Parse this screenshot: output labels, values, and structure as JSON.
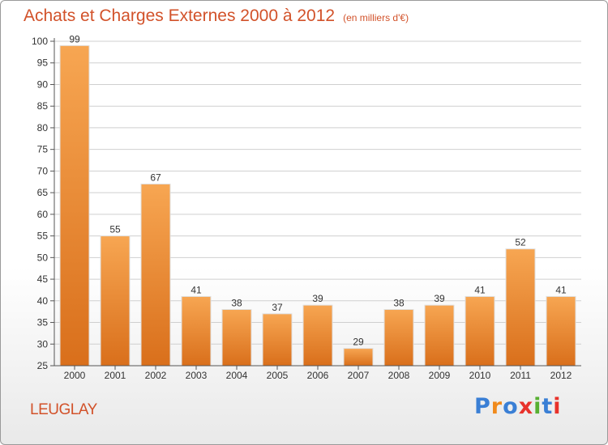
{
  "header": {
    "title": "Achats et Charges Externes 2000 à 2012",
    "unit": "(en milliers d'€)"
  },
  "footer": {
    "region": "LEUGLAY",
    "logo": "Proxiti",
    "logo_colors": [
      "#3a7fd5",
      "#f08a1c",
      "#3a7fd5",
      "#e8322b",
      "#58b032",
      "#3a7fd5",
      "#e8322b"
    ]
  },
  "colors": {
    "bar_light": "#f7a652",
    "bar_dark": "#d96f1b",
    "title": "#d2522a",
    "grid": "#cfcfcf"
  },
  "chart_data": {
    "type": "bar",
    "title": "Achats et Charges Externes 2000 à 2012",
    "subtitle": "(en milliers d'€)",
    "categories": [
      "2000",
      "2001",
      "2002",
      "2003",
      "2004",
      "2005",
      "2006",
      "2007",
      "2008",
      "2009",
      "2010",
      "2011",
      "2012"
    ],
    "values": [
      99,
      55,
      67,
      41,
      38,
      37,
      39,
      29,
      38,
      39,
      41,
      52,
      41
    ],
    "ylim": [
      25,
      100
    ],
    "yticks": [
      25,
      30,
      35,
      40,
      45,
      50,
      55,
      60,
      65,
      70,
      75,
      80,
      85,
      90,
      95,
      100
    ],
    "grid": true,
    "legend": "none"
  }
}
